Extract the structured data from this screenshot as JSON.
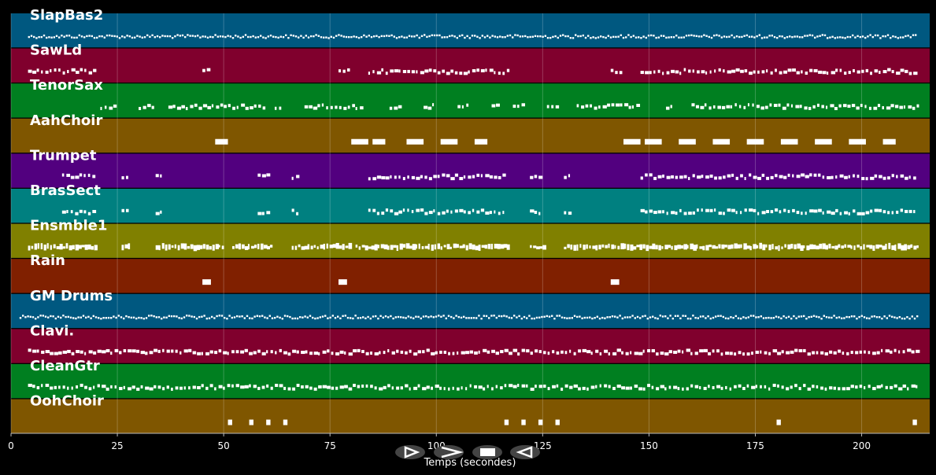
{
  "xaxis": {
    "label": "Temps (secondes)",
    "range": [
      0,
      216
    ],
    "ticks": [
      0,
      25,
      50,
      75,
      100,
      125,
      150,
      175,
      200
    ]
  },
  "tracks": [
    {
      "name": "SlapBas2",
      "color": "#005880",
      "style": "wave",
      "segments": [
        [
          4,
          213
        ]
      ]
    },
    {
      "name": "SawLd",
      "color": "#80002d",
      "style": "dash",
      "segments": [
        [
          4,
          20
        ],
        [
          45,
          47
        ],
        [
          77,
          80
        ],
        [
          84,
          117
        ],
        [
          141,
          144
        ],
        [
          148,
          213
        ]
      ]
    },
    {
      "name": "TenorSax",
      "color": "#007f20",
      "style": "dash",
      "segments": [
        [
          21,
          25
        ],
        [
          30,
          34
        ],
        [
          37,
          50
        ],
        [
          50,
          60
        ],
        [
          62,
          64
        ],
        [
          69,
          81
        ],
        [
          81,
          83
        ],
        [
          89,
          92
        ],
        [
          97,
          100
        ],
        [
          105,
          108
        ],
        [
          113,
          115
        ],
        [
          118,
          121
        ],
        [
          126,
          129
        ],
        [
          133,
          146
        ],
        [
          146,
          148
        ],
        [
          154,
          156
        ],
        [
          160,
          213
        ]
      ]
    },
    {
      "name": "AahChoir",
      "color": "#7f5600",
      "style": "block",
      "segments": [
        [
          48,
          51
        ],
        [
          80,
          84
        ],
        [
          85,
          88
        ],
        [
          93,
          97
        ],
        [
          101,
          105
        ],
        [
          109,
          112
        ],
        [
          144,
          148
        ],
        [
          149,
          153
        ],
        [
          157,
          161
        ],
        [
          165,
          169
        ],
        [
          173,
          177
        ],
        [
          181,
          185
        ],
        [
          189,
          193
        ],
        [
          197,
          201
        ],
        [
          205,
          208
        ]
      ]
    },
    {
      "name": "Trumpet",
      "color": "#52007f",
      "style": "dash",
      "segments": [
        [
          12,
          20
        ],
        [
          26,
          28
        ],
        [
          34,
          36
        ],
        [
          58,
          61
        ],
        [
          66,
          68
        ],
        [
          84,
          116
        ],
        [
          122,
          125
        ],
        [
          130,
          132
        ],
        [
          148,
          213
        ]
      ]
    },
    {
      "name": "BrasSect",
      "color": "#008080",
      "style": "dash",
      "segments": [
        [
          12,
          20
        ],
        [
          26,
          28
        ],
        [
          34,
          36
        ],
        [
          58,
          61
        ],
        [
          66,
          68
        ],
        [
          84,
          116
        ],
        [
          122,
          125
        ],
        [
          130,
          132
        ],
        [
          148,
          213
        ]
      ]
    },
    {
      "name": "Ensmble1",
      "color": "#808000",
      "style": "dense",
      "segments": [
        [
          4,
          20
        ],
        [
          26,
          28
        ],
        [
          34,
          50
        ],
        [
          52,
          61
        ],
        [
          66,
          80
        ],
        [
          81,
          117
        ],
        [
          122,
          125
        ],
        [
          130,
          213
        ]
      ]
    },
    {
      "name": "Rain",
      "color": "#802000",
      "style": "block",
      "segments": [
        [
          45,
          47
        ],
        [
          77,
          79
        ],
        [
          141,
          143
        ]
      ]
    },
    {
      "name": "GM Drums",
      "color": "#005880",
      "style": "wave",
      "segments": [
        [
          2,
          213
        ]
      ]
    },
    {
      "name": "Clavi.",
      "color": "#80002d",
      "style": "dash",
      "segments": [
        [
          4,
          213
        ]
      ]
    },
    {
      "name": "CleanGtr",
      "color": "#007f20",
      "style": "dash",
      "segments": [
        [
          4,
          213
        ]
      ]
    },
    {
      "name": "OohChoir",
      "color": "#7f5600",
      "style": "block",
      "segments": [
        [
          51,
          52
        ],
        [
          56,
          57
        ],
        [
          60,
          61
        ],
        [
          64,
          65
        ],
        [
          116,
          117
        ],
        [
          120,
          121
        ],
        [
          124,
          125
        ],
        [
          128,
          129
        ],
        [
          180,
          181
        ],
        [
          212,
          213
        ]
      ]
    }
  ],
  "controls": [
    {
      "name": "play-button",
      "icon": "play-outline-icon"
    },
    {
      "name": "fast-forward-button",
      "icon": "fast-forward-icon"
    },
    {
      "name": "stop-button",
      "icon": "stop-icon"
    },
    {
      "name": "rewind-button",
      "icon": "rewind-icon"
    }
  ]
}
